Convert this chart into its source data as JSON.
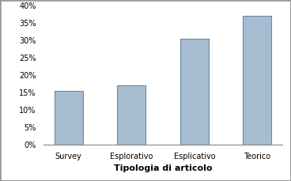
{
  "categories": [
    "Survey",
    "Esplorativo",
    "Esplicativo",
    "Teorico"
  ],
  "values": [
    0.155,
    0.17,
    0.305,
    0.37
  ],
  "bar_color": "#a8bcd1",
  "bar_edge_color": "#6688aa",
  "xlabel": "Tipologia di articolo",
  "ylabel": "",
  "ylim": [
    0,
    0.4
  ],
  "yticks": [
    0.0,
    0.05,
    0.1,
    0.15,
    0.2,
    0.25,
    0.3,
    0.35,
    0.4
  ],
  "ytick_labels": [
    "0%",
    "5%",
    "10%",
    "15%",
    "20%",
    "25%",
    "30%",
    "35%",
    "40%"
  ],
  "xlabel_fontsize": 8,
  "tick_fontsize": 7,
  "background_color": "#ffffff",
  "bar_width": 0.45,
  "outer_border_color": "#aaaaaa"
}
